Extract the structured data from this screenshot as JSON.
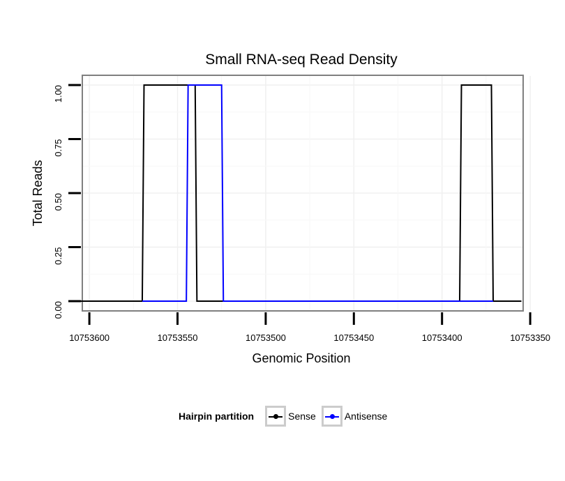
{
  "chart_data": {
    "type": "line",
    "title": "Small RNA-seq Read Density",
    "xlabel": "Genomic Position",
    "ylabel": "Total Reads",
    "x_reversed": true,
    "xlim": [
      10753604,
      10753354
    ],
    "ylim": [
      -0.045,
      1.045
    ],
    "x_ticks": [
      10753600,
      10753550,
      10753500,
      10753450,
      10753400,
      10753350
    ],
    "x_tick_labels": [
      "10753600",
      "10753550",
      "10753500",
      "10753450",
      "10753400",
      "10753350"
    ],
    "y_ticks": [
      0,
      0.25,
      0.5,
      0.75,
      1
    ],
    "y_tick_labels": [
      "0.00",
      "0.25",
      "0.50",
      "0.75",
      "1.00"
    ],
    "grid": true,
    "legend": {
      "title": "Hairpin partition",
      "position": "bottom"
    },
    "series": [
      {
        "name": "Sense",
        "color": "#000000",
        "x": [
          10753605,
          10753570,
          10753569,
          10753544,
          10753543,
          10753540,
          10753539,
          10753390,
          10753389,
          10753372,
          10753371,
          10753355
        ],
        "y": [
          0,
          0,
          1,
          1,
          1,
          1,
          0,
          0,
          1,
          1,
          0,
          0
        ]
      },
      {
        "name": "Antisense",
        "color": "#0000ff",
        "x": [
          10753570,
          10753545,
          10753544,
          10753525,
          10753524,
          10753390,
          10753371
        ],
        "y": [
          0,
          0,
          1,
          1,
          0,
          0,
          0
        ]
      }
    ]
  }
}
